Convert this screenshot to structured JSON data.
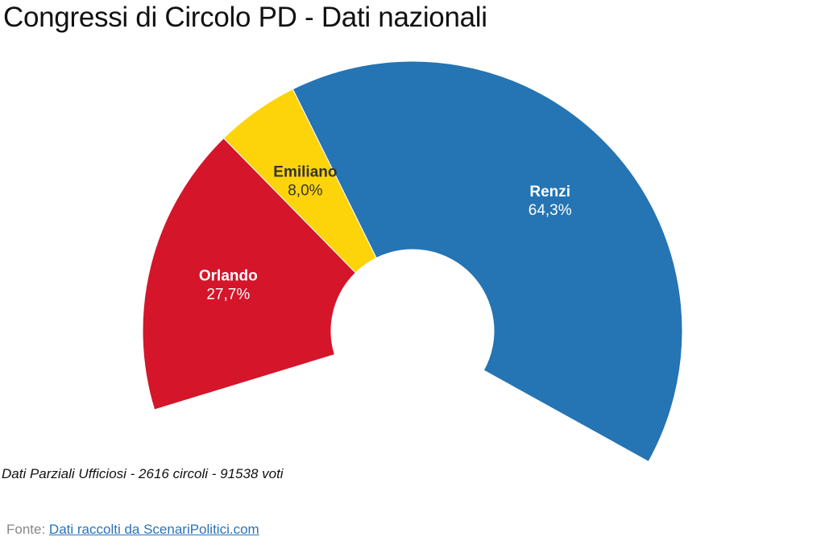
{
  "page": {
    "note": "Dati Parziali Ufficiosi - 2616 circoli - 91538 voti",
    "source_prefix": "Fonte: ",
    "source_link": "Dati raccolti da ScenariPolitici.com"
  },
  "chart_data": {
    "type": "pie",
    "variant": "semi-donut",
    "title": "Congressi di Circolo PD - Dati nazionali",
    "slices": [
      {
        "name": "Orlando",
        "value": 27.7,
        "value_label": "27,7%",
        "color": "#d4152a",
        "label_color": "#ffffff"
      },
      {
        "name": "Emiliano",
        "value": 8.0,
        "value_label": "8,0%",
        "color": "#fdd30a",
        "label_color": "#333333"
      },
      {
        "name": "Renzi",
        "value": 64.3,
        "value_label": "64,3%",
        "color": "#2574b3",
        "label_color": "#ffffff"
      }
    ]
  }
}
